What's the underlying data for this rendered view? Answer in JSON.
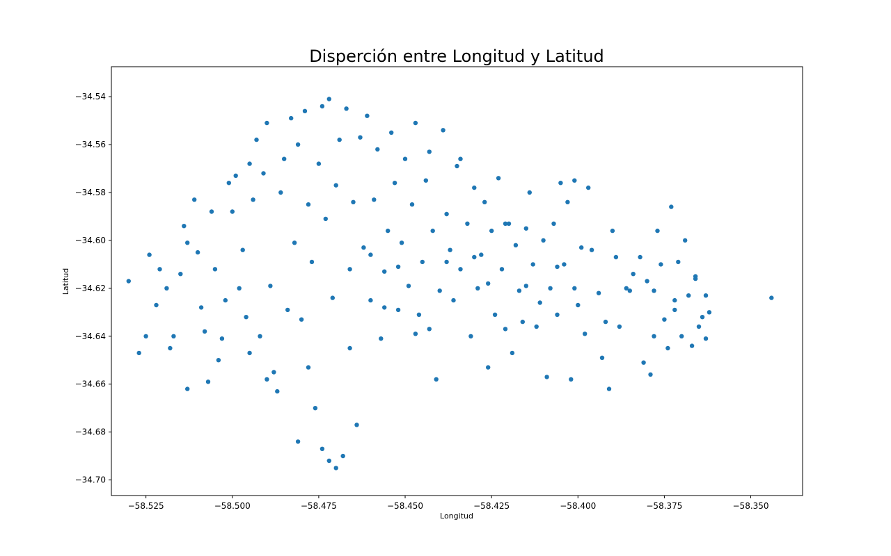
{
  "chart_data": {
    "type": "scatter",
    "title": "Disperción entre Longitud y Latitud",
    "xlabel": "Longitud",
    "ylabel": "Latitud",
    "xlim": [
      -58.535,
      -58.335
    ],
    "ylim": [
      -34.7065,
      -34.5275
    ],
    "xticks": [
      -58.525,
      -58.5,
      -58.475,
      -58.45,
      -58.425,
      -58.4,
      -58.375,
      -58.35
    ],
    "xtick_labels": [
      "−58.525",
      "−58.500",
      "−58.475",
      "−58.450",
      "−58.425",
      "−58.400",
      "−58.375",
      "−58.350"
    ],
    "yticks": [
      -34.54,
      -34.56,
      -34.58,
      -34.6,
      -34.62,
      -34.64,
      -34.66,
      -34.68,
      -34.7
    ],
    "ytick_labels": [
      "−34.54",
      "−34.56",
      "−34.58",
      "−34.60",
      "−34.62",
      "−34.64",
      "−34.66",
      "−34.68",
      "−34.70"
    ],
    "grid": false,
    "marker_color": "#1f77b4",
    "points": [
      [
        -58.53,
        -34.617
      ],
      [
        -58.527,
        -34.647
      ],
      [
        -58.525,
        -34.64
      ],
      [
        -58.522,
        -34.627
      ],
      [
        -58.521,
        -34.612
      ],
      [
        -58.519,
        -34.62
      ],
      [
        -58.517,
        -34.64
      ],
      [
        -58.515,
        -34.614
      ],
      [
        -58.514,
        -34.594
      ],
      [
        -58.513,
        -34.601
      ],
      [
        -58.511,
        -34.583
      ],
      [
        -58.51,
        -34.605
      ],
      [
        -58.509,
        -34.628
      ],
      [
        -58.508,
        -34.638
      ],
      [
        -58.506,
        -34.588
      ],
      [
        -58.505,
        -34.612
      ],
      [
        -58.504,
        -34.65
      ],
      [
        -58.503,
        -34.641
      ],
      [
        -58.501,
        -34.576
      ],
      [
        -58.5,
        -34.588
      ],
      [
        -58.498,
        -34.62
      ],
      [
        -58.497,
        -34.604
      ],
      [
        -58.496,
        -34.632
      ],
      [
        -58.495,
        -34.568
      ],
      [
        -58.494,
        -34.583
      ],
      [
        -58.493,
        -34.558
      ],
      [
        -58.492,
        -34.64
      ],
      [
        -58.491,
        -34.572
      ],
      [
        -58.49,
        -34.551
      ],
      [
        -58.489,
        -34.619
      ],
      [
        -58.488,
        -34.655
      ],
      [
        -58.486,
        -34.58
      ],
      [
        -58.485,
        -34.566
      ],
      [
        -58.484,
        -34.629
      ],
      [
        -58.483,
        -34.549
      ],
      [
        -58.482,
        -34.601
      ],
      [
        -58.481,
        -34.56
      ],
      [
        -58.48,
        -34.633
      ],
      [
        -58.479,
        -34.546
      ],
      [
        -58.478,
        -34.585
      ],
      [
        -58.477,
        -34.609
      ],
      [
        -58.476,
        -34.67
      ],
      [
        -58.475,
        -34.568
      ],
      [
        -58.474,
        -34.544
      ],
      [
        -58.473,
        -34.591
      ],
      [
        -58.472,
        -34.541
      ],
      [
        -58.471,
        -34.624
      ],
      [
        -58.47,
        -34.577
      ],
      [
        -58.469,
        -34.558
      ],
      [
        -58.468,
        -34.69
      ],
      [
        -58.467,
        -34.545
      ],
      [
        -58.466,
        -34.612
      ],
      [
        -58.465,
        -34.584
      ],
      [
        -58.464,
        -34.677
      ],
      [
        -58.463,
        -34.557
      ],
      [
        -58.462,
        -34.603
      ],
      [
        -58.461,
        -34.548
      ],
      [
        -58.46,
        -34.625
      ],
      [
        -58.459,
        -34.583
      ],
      [
        -58.458,
        -34.562
      ],
      [
        -58.457,
        -34.641
      ],
      [
        -58.456,
        -34.613
      ],
      [
        -58.455,
        -34.596
      ],
      [
        -58.454,
        -34.555
      ],
      [
        -58.453,
        -34.576
      ],
      [
        -58.452,
        -34.629
      ],
      [
        -58.451,
        -34.601
      ],
      [
        -58.45,
        -34.566
      ],
      [
        -58.449,
        -34.619
      ],
      [
        -58.448,
        -34.585
      ],
      [
        -58.447,
        -34.551
      ],
      [
        -58.446,
        -34.631
      ],
      [
        -58.445,
        -34.609
      ],
      [
        -58.444,
        -34.575
      ],
      [
        -58.443,
        -34.637
      ],
      [
        -58.442,
        -34.596
      ],
      [
        -58.441,
        -34.658
      ],
      [
        -58.44,
        -34.621
      ],
      [
        -58.439,
        -34.554
      ],
      [
        -58.438,
        -34.589
      ],
      [
        -58.437,
        -34.604
      ],
      [
        -58.436,
        -34.625
      ],
      [
        -58.435,
        -34.569
      ],
      [
        -58.434,
        -34.612
      ],
      [
        -58.432,
        -34.593
      ],
      [
        -58.431,
        -34.64
      ],
      [
        -58.43,
        -34.578
      ],
      [
        -58.429,
        -34.62
      ],
      [
        -58.428,
        -34.606
      ],
      [
        -58.427,
        -34.584
      ],
      [
        -58.426,
        -34.653
      ],
      [
        -58.425,
        -34.596
      ],
      [
        -58.424,
        -34.631
      ],
      [
        -58.423,
        -34.574
      ],
      [
        -58.422,
        -34.612
      ],
      [
        -58.421,
        -34.637
      ],
      [
        -58.42,
        -34.593
      ],
      [
        -58.419,
        -34.647
      ],
      [
        -58.418,
        -34.602
      ],
      [
        -58.417,
        -34.621
      ],
      [
        -58.416,
        -34.634
      ],
      [
        -58.415,
        -34.595
      ],
      [
        -58.414,
        -34.58
      ],
      [
        -58.413,
        -34.61
      ],
      [
        -58.411,
        -34.626
      ],
      [
        -58.41,
        -34.6
      ],
      [
        -58.409,
        -34.657
      ],
      [
        -58.408,
        -34.62
      ],
      [
        -58.407,
        -34.593
      ],
      [
        -58.406,
        -34.631
      ],
      [
        -58.405,
        -34.576
      ],
      [
        -58.404,
        -34.61
      ],
      [
        -58.403,
        -34.584
      ],
      [
        -58.402,
        -34.658
      ],
      [
        -58.401,
        -34.575
      ],
      [
        -58.4,
        -34.627
      ],
      [
        -58.399,
        -34.603
      ],
      [
        -58.398,
        -34.639
      ],
      [
        -58.397,
        -34.578
      ],
      [
        -58.396,
        -34.604
      ],
      [
        -58.394,
        -34.622
      ],
      [
        -58.392,
        -34.634
      ],
      [
        -58.391,
        -34.662
      ],
      [
        -58.39,
        -34.596
      ],
      [
        -58.389,
        -34.607
      ],
      [
        -58.388,
        -34.636
      ],
      [
        -58.386,
        -34.62
      ],
      [
        -58.384,
        -34.614
      ],
      [
        -58.382,
        -34.607
      ],
      [
        -58.381,
        -34.651
      ],
      [
        -58.38,
        -34.617
      ],
      [
        -58.379,
        -34.656
      ],
      [
        -58.378,
        -34.621
      ],
      [
        -58.377,
        -34.596
      ],
      [
        -58.376,
        -34.61
      ],
      [
        -58.375,
        -34.633
      ],
      [
        -58.374,
        -34.645
      ],
      [
        -58.373,
        -34.586
      ],
      [
        -58.372,
        -34.625
      ],
      [
        -58.371,
        -34.609
      ],
      [
        -58.37,
        -34.64
      ],
      [
        -58.369,
        -34.6
      ],
      [
        -58.368,
        -34.623
      ],
      [
        -58.367,
        -34.644
      ],
      [
        -58.366,
        -34.615
      ],
      [
        -58.365,
        -34.636
      ],
      [
        -58.364,
        -34.632
      ],
      [
        -58.363,
        -34.623
      ],
      [
        -58.362,
        -34.63
      ],
      [
        -58.344,
        -34.624
      ],
      [
        -58.524,
        -34.606
      ],
      [
        -58.518,
        -34.645
      ],
      [
        -58.513,
        -34.662
      ],
      [
        -58.507,
        -34.659
      ],
      [
        -58.502,
        -34.625
      ],
      [
        -58.499,
        -34.573
      ],
      [
        -58.495,
        -34.647
      ],
      [
        -58.49,
        -34.658
      ],
      [
        -58.487,
        -34.663
      ],
      [
        -58.481,
        -34.684
      ],
      [
        -58.478,
        -34.653
      ],
      [
        -58.474,
        -34.687
      ],
      [
        -58.472,
        -34.692
      ],
      [
        -58.47,
        -34.695
      ],
      [
        -58.466,
        -34.645
      ],
      [
        -58.46,
        -34.606
      ],
      [
        -58.456,
        -34.628
      ],
      [
        -58.452,
        -34.611
      ],
      [
        -58.447,
        -34.639
      ],
      [
        -58.443,
        -34.563
      ],
      [
        -58.438,
        -34.609
      ],
      [
        -58.434,
        -34.566
      ],
      [
        -58.43,
        -34.607
      ],
      [
        -58.426,
        -34.618
      ],
      [
        -58.421,
        -34.593
      ],
      [
        -58.415,
        -34.619
      ],
      [
        -58.412,
        -34.636
      ],
      [
        -58.406,
        -34.611
      ],
      [
        -58.401,
        -34.62
      ],
      [
        -58.393,
        -34.649
      ],
      [
        -58.385,
        -34.621
      ],
      [
        -58.378,
        -34.64
      ],
      [
        -58.372,
        -34.629
      ],
      [
        -58.366,
        -34.616
      ],
      [
        -58.363,
        -34.641
      ]
    ]
  }
}
